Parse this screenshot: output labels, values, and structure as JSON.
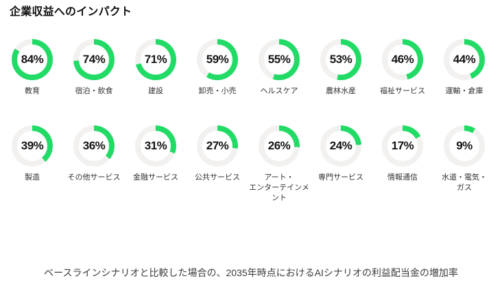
{
  "title": "企業収益へのインパクト",
  "caption": "ベースラインシナリオと比較した場合の、2035年時点におけるAIシナリオの利益配当金の増加率",
  "colors": {
    "arc_green": "#22db66",
    "track_gray": "#f2f1ef",
    "value_text": "#141414",
    "label_text": "#333333",
    "caption_text": "#3d3d3d",
    "background": "#ffffff"
  },
  "chart_data": {
    "type": "pie",
    "subtype": "donut-gauge-grid",
    "title": "企業収益へのインパクト",
    "caption": "ベースラインシナリオと比較した場合の、2035年時点におけるAIシナリオの利益配当金の増加率",
    "unit": "%",
    "value_range": [
      0,
      100
    ],
    "arc_start": "top",
    "arc_direction": "clockwise",
    "layout": {
      "columns": 8,
      "rows": 2,
      "legend": "none",
      "grid": "off"
    },
    "items": [
      {
        "label": "教育",
        "value": 84
      },
      {
        "label": "宿泊・飲食",
        "value": 74
      },
      {
        "label": "建設",
        "value": 71
      },
      {
        "label": "卸売・小売",
        "value": 59
      },
      {
        "label": "ヘルスケア",
        "value": 55
      },
      {
        "label": "農林水産",
        "value": 53
      },
      {
        "label": "福祉サービス",
        "value": 46
      },
      {
        "label": "運輸・倉庫",
        "value": 44
      },
      {
        "label": "製造",
        "value": 39
      },
      {
        "label": "その他サービス",
        "value": 36
      },
      {
        "label": "金融サービス",
        "value": 31
      },
      {
        "label": "公共サービス",
        "value": 27
      },
      {
        "label": "アート・\nエンターテインメント",
        "value": 26
      },
      {
        "label": "専門サービス",
        "value": 24
      },
      {
        "label": "情報通信",
        "value": 17
      },
      {
        "label": "水道・電気・\nガス",
        "value": 9
      }
    ]
  }
}
